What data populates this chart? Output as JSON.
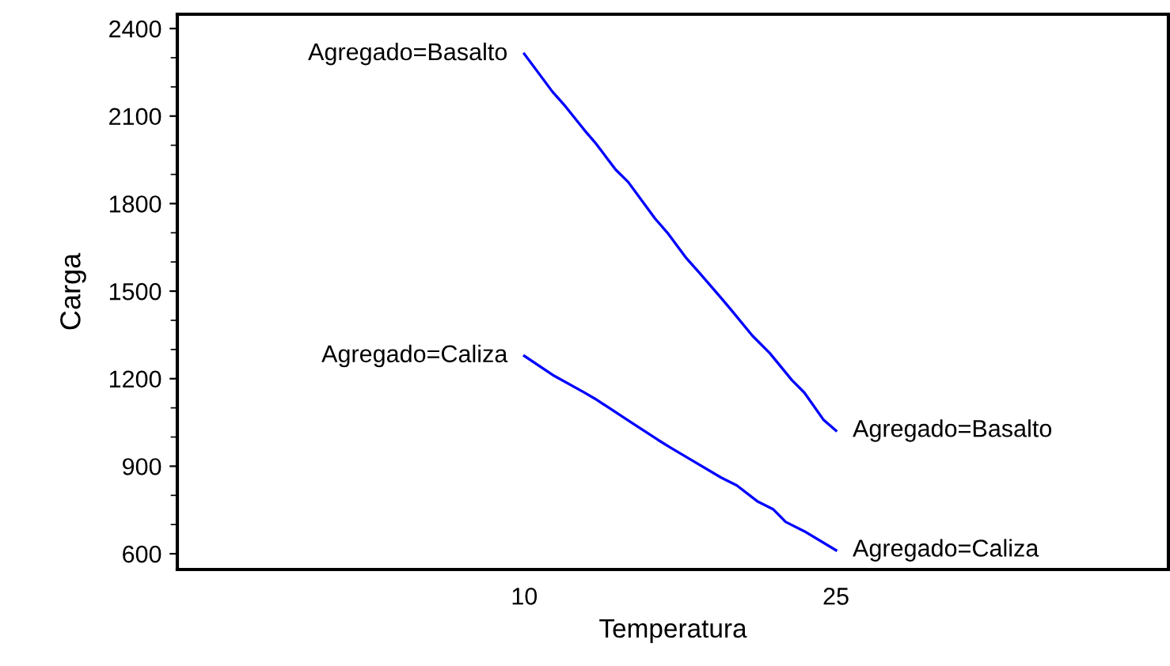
{
  "chart_data": {
    "type": "line",
    "xlabel": "Temperatura",
    "ylabel": "Carga",
    "xlim": [
      -6.7,
      41
    ],
    "xticks": [
      10,
      25
    ],
    "ylim": [
      546,
      2449
    ],
    "yticks": [
      600,
      900,
      1200,
      1500,
      1800,
      2100,
      2400
    ],
    "grid": false,
    "legend": false,
    "marker": "none",
    "line_style": "solid",
    "series": [
      {
        "name": "Agregado=Basalto",
        "color": "#0000ff",
        "x": [
          10,
          11.36,
          11.97,
          12.88,
          13.41,
          14.39,
          15.0,
          16.29,
          16.89,
          17.8,
          18.41,
          19.47,
          19.92,
          20.98,
          21.82,
          22.88,
          23.48,
          24.39,
          25
        ],
        "values": [
          2313,
          2183,
          2134,
          2053,
          2009,
          1917,
          1874,
          1749,
          1700,
          1613,
          1564,
          1477,
          1439,
          1347,
          1287,
          1195,
          1152,
          1060,
          1022
        ]
      },
      {
        "name": "Agregado=Caliza",
        "color": "#0000ff",
        "x": [
          10,
          11.36,
          12.88,
          13.41,
          15.15,
          16.44,
          17.05,
          17.95,
          19.47,
          20.23,
          21.21,
          21.97,
          22.58,
          23.48,
          25
        ],
        "values": [
          1278,
          1213,
          1153,
          1131,
          1050,
          990,
          963,
          925,
          861,
          834,
          780,
          753,
          709,
          677,
          612
        ]
      }
    ]
  }
}
